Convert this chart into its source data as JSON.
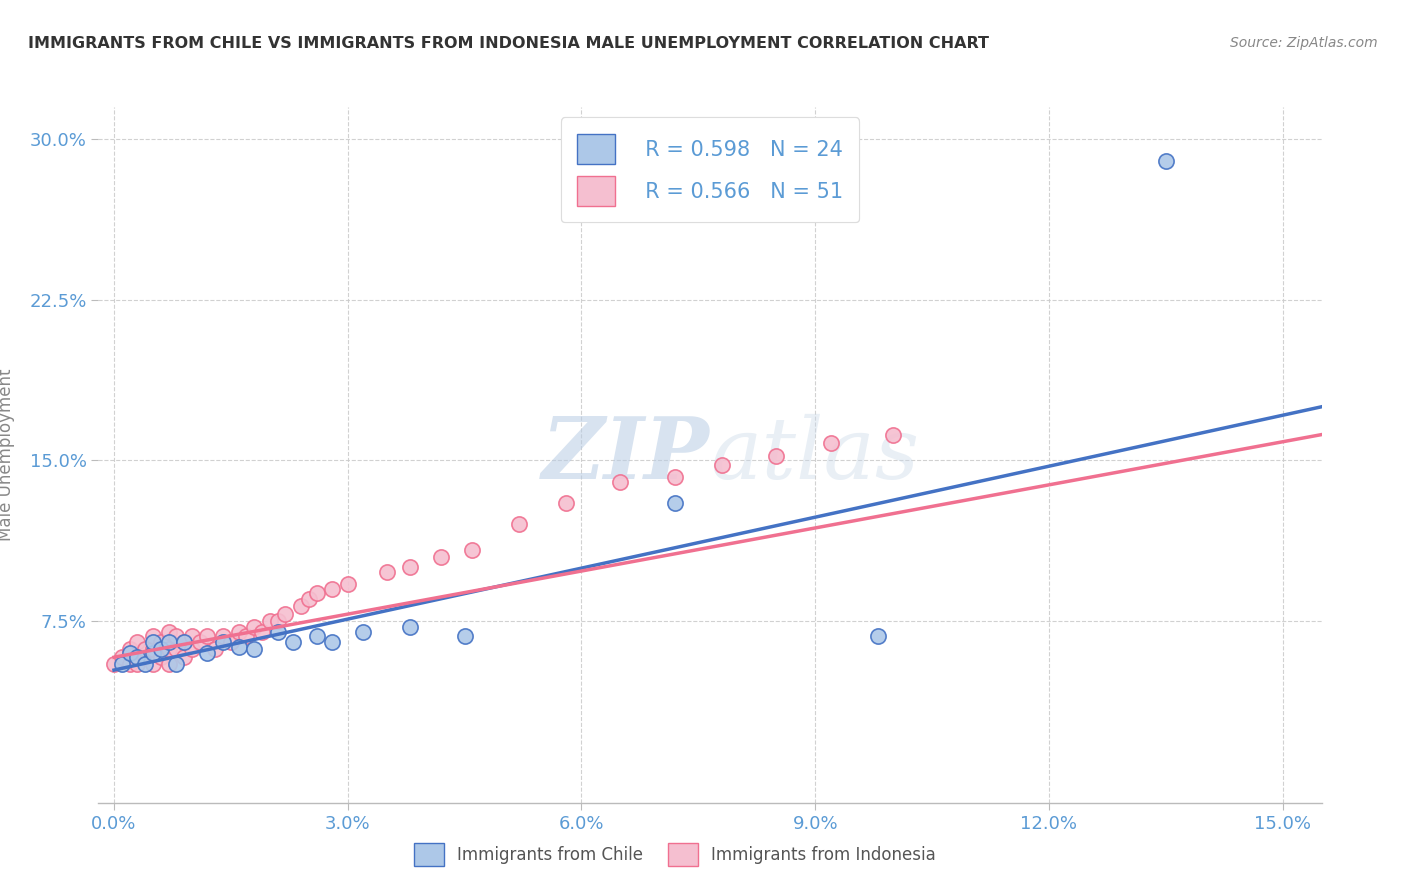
{
  "title": "IMMIGRANTS FROM CHILE VS IMMIGRANTS FROM INDONESIA MALE UNEMPLOYMENT CORRELATION CHART",
  "source_text": "Source: ZipAtlas.com",
  "ylabel_label": "Male Unemployment",
  "x_tick_labels": [
    "0.0%",
    "3.0%",
    "6.0%",
    "9.0%",
    "12.0%",
    "15.0%"
  ],
  "x_tick_vals": [
    0.0,
    0.03,
    0.06,
    0.09,
    0.12,
    0.15
  ],
  "y_tick_labels": [
    "7.5%",
    "15.0%",
    "22.5%",
    "30.0%"
  ],
  "y_tick_vals": [
    0.075,
    0.15,
    0.225,
    0.3
  ],
  "xlim": [
    -0.002,
    0.155
  ],
  "ylim": [
    -0.01,
    0.315
  ],
  "legend_r_chile": "R = 0.598",
  "legend_n_chile": "N = 24",
  "legend_r_indonesia": "R = 0.566",
  "legend_n_indonesia": "N = 51",
  "color_chile": "#adc8e8",
  "color_chile_line": "#4472c4",
  "color_indonesia": "#f5bfd0",
  "color_indonesia_line": "#f07090",
  "watermark_color": "#cdd8e8",
  "chile_scatter_x": [
    0.001,
    0.002,
    0.003,
    0.004,
    0.005,
    0.005,
    0.006,
    0.007,
    0.008,
    0.009,
    0.012,
    0.014,
    0.016,
    0.018,
    0.021,
    0.023,
    0.026,
    0.028,
    0.032,
    0.038,
    0.045,
    0.072,
    0.098,
    0.135
  ],
  "chile_scatter_y": [
    0.055,
    0.06,
    0.058,
    0.055,
    0.06,
    0.065,
    0.062,
    0.065,
    0.055,
    0.065,
    0.06,
    0.065,
    0.063,
    0.062,
    0.07,
    0.065,
    0.068,
    0.065,
    0.07,
    0.072,
    0.068,
    0.13,
    0.068,
    0.29
  ],
  "indonesia_scatter_x": [
    0.0,
    0.001,
    0.002,
    0.002,
    0.003,
    0.003,
    0.004,
    0.004,
    0.005,
    0.005,
    0.005,
    0.006,
    0.006,
    0.007,
    0.007,
    0.007,
    0.008,
    0.008,
    0.009,
    0.009,
    0.01,
    0.01,
    0.011,
    0.012,
    0.013,
    0.014,
    0.015,
    0.016,
    0.017,
    0.018,
    0.019,
    0.02,
    0.021,
    0.022,
    0.024,
    0.025,
    0.026,
    0.028,
    0.03,
    0.035,
    0.038,
    0.042,
    0.046,
    0.052,
    0.058,
    0.065,
    0.072,
    0.078,
    0.085,
    0.092,
    0.1
  ],
  "indonesia_scatter_y": [
    0.055,
    0.058,
    0.055,
    0.062,
    0.055,
    0.065,
    0.058,
    0.062,
    0.055,
    0.062,
    0.068,
    0.058,
    0.065,
    0.055,
    0.062,
    0.07,
    0.062,
    0.068,
    0.058,
    0.065,
    0.062,
    0.068,
    0.065,
    0.068,
    0.062,
    0.068,
    0.065,
    0.07,
    0.068,
    0.072,
    0.07,
    0.075,
    0.075,
    0.078,
    0.082,
    0.085,
    0.088,
    0.09,
    0.092,
    0.098,
    0.1,
    0.105,
    0.108,
    0.12,
    0.13,
    0.14,
    0.142,
    0.148,
    0.152,
    0.158,
    0.162
  ],
  "chile_line_x0": 0.0,
  "chile_line_x1": 0.155,
  "chile_line_y0": 0.052,
  "chile_line_y1": 0.175,
  "indo_line_x0": 0.0,
  "indo_line_x1": 0.155,
  "indo_line_y0": 0.058,
  "indo_line_y1": 0.162,
  "background_color": "#ffffff",
  "grid_color": "#cccccc",
  "title_color": "#333333",
  "tick_color": "#5b9bd5"
}
